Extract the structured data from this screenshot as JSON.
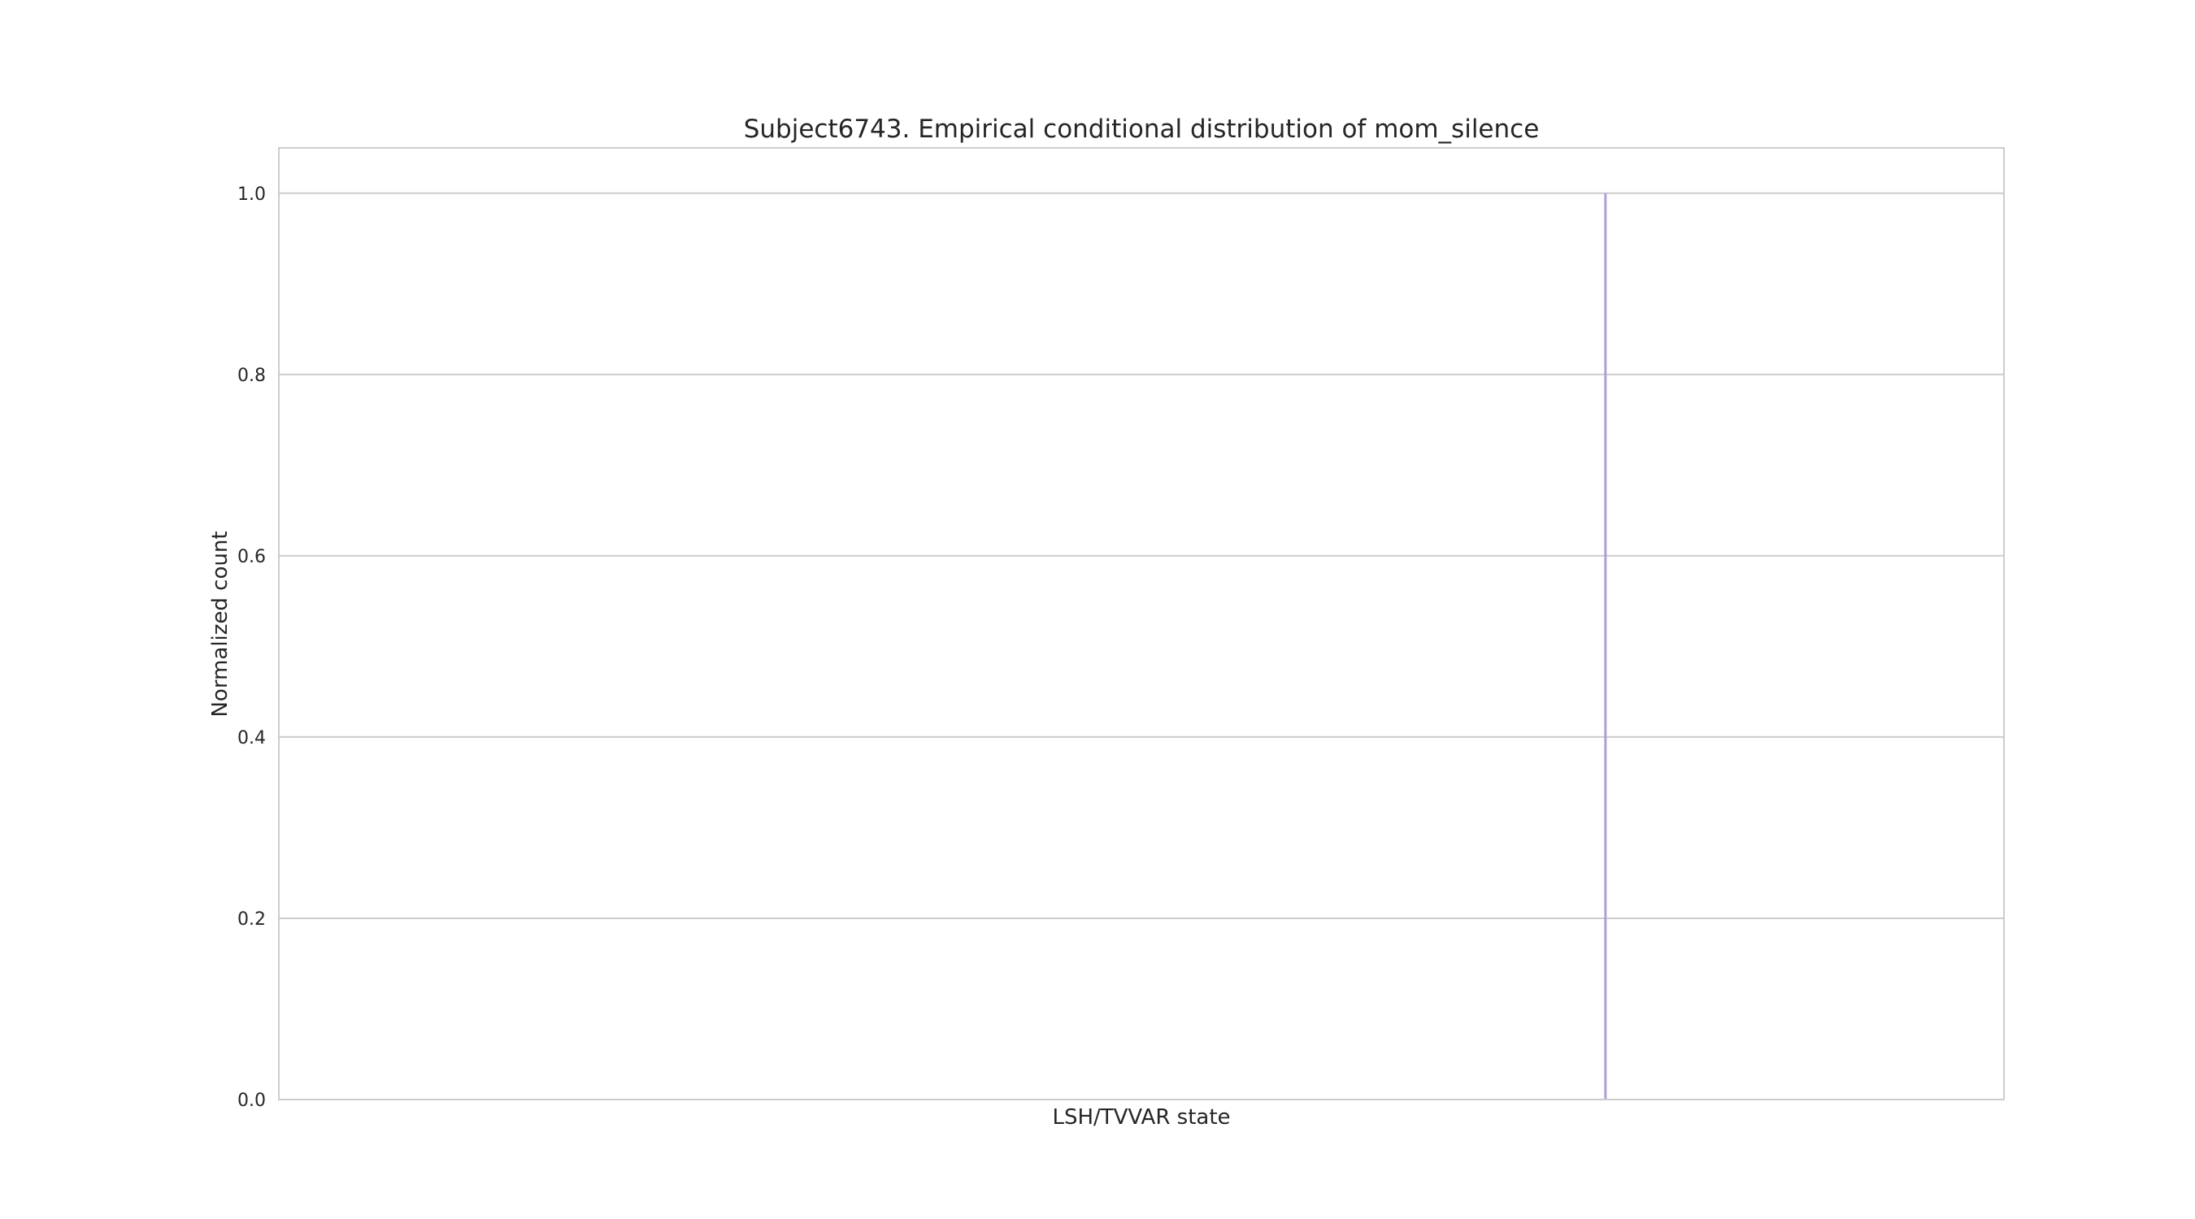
{
  "chart_data": {
    "type": "bar",
    "title": "Subject6743. Empirical conditional distribution of mom_silence",
    "xlabel": "LSH/TVVAR state",
    "ylabel": "Normalized count",
    "ylim": [
      0,
      1.05
    ],
    "yticks": [
      "0.0",
      "0.2",
      "0.4",
      "0.6",
      "0.8",
      "1.0"
    ],
    "grid": true,
    "x_range": [
      0,
      100
    ],
    "bars": [
      {
        "x": 76.9,
        "value": 1.0,
        "color": "#b19cd9"
      }
    ]
  }
}
